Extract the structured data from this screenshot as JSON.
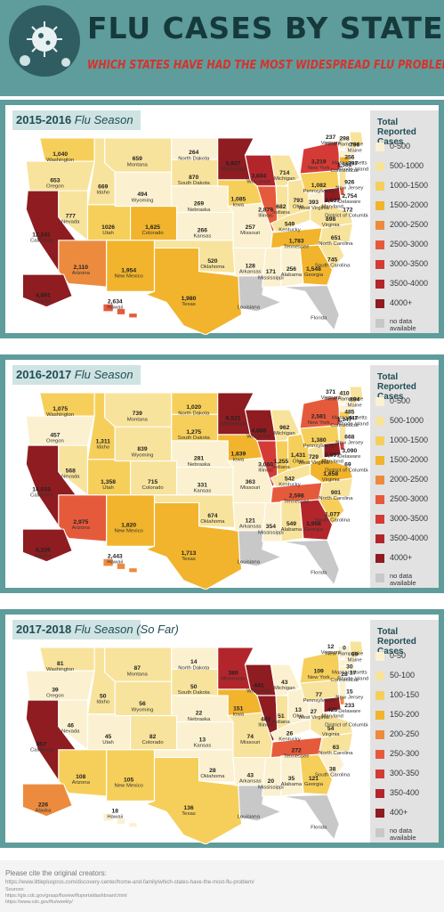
{
  "header": {
    "title": "FLU CASES BY STATE",
    "subtitle": "WHICH STATES HAVE HAD THE MOST WIDESPREAD FLU PROBLEM?"
  },
  "colors": {
    "teal_bg": "#5f9c9c",
    "bin1": "#fbf1d0",
    "bin2": "#f8e39c",
    "bin3": "#f6cf5b",
    "bin4": "#f1b42c",
    "bin5": "#ec8b3e",
    "bin6": "#e65a3c",
    "bin7": "#d53b36",
    "bin8": "#b2262b",
    "bin9": "#8e1c20",
    "nodata": "#c8c8c8"
  },
  "sections": [
    {
      "season": "2015-2016",
      "season_label": "Flu Season",
      "legend_title": "Total Reported Cases",
      "legend": [
        "0-500",
        "500-1000",
        "1000-1500",
        "1500-2000",
        "2000-2500",
        "2500-3000",
        "3000-3500",
        "3500-4000",
        "4000+",
        "no data available"
      ],
      "values": {
        "WA": "1,040",
        "OR": "653",
        "CA": "12,241",
        "NV": "777",
        "ID": "669",
        "MT": "659",
        "WY": "494",
        "UT": "1026",
        "AZ": "2,110",
        "CO": "1,625",
        "NM": "1,954",
        "ND": "264",
        "SD": "870",
        "NE": "269",
        "KS": "266",
        "OK": "520",
        "TX": "1,980",
        "MN": "5,927",
        "IA": "1,085",
        "MO": "257",
        "AR": "128",
        "LA": "",
        "WI": "3,604",
        "IL": "2,879",
        "MI": "714",
        "IN": "682",
        "OH": "793",
        "KY": "549",
        "TN": "1,783",
        "MS": "171",
        "AL": "256",
        "GA": "1,548",
        "FL": "",
        "SC": "745",
        "NC": "651",
        "VA": "898",
        "WV": "393",
        "PA": "1,082",
        "NY": "3,219",
        "VT": "237",
        "NH": "298",
        "ME": "796",
        "MA": "356",
        "RI": "397",
        "CT": "1,581",
        "NJ": "926",
        "DE": "2,754",
        "MD": "4,537",
        "DC": "172",
        "AK": "4,691",
        "HI": "2,634"
      }
    },
    {
      "season": "2016-2017",
      "season_label": "Flu Season",
      "legend_title": "Total Reported Cases",
      "legend": [
        "0-500",
        "500-1000",
        "1000-1500",
        "1500-2000",
        "2000-2500",
        "2500-3000",
        "3000-3500",
        "3500-4000",
        "4000+",
        "no data available"
      ],
      "values": {
        "WA": "1,075",
        "OR": "457",
        "CA": "14,033",
        "NV": "568",
        "ID": "1,311",
        "MT": "739",
        "WY": "839",
        "UT": "1,358",
        "AZ": "2,975",
        "CO": "715",
        "NM": "1,820",
        "ND": "1,020",
        "SD": "1,275",
        "NE": "281",
        "KS": "331",
        "OK": "674",
        "TX": "1,713",
        "MN": "6,521",
        "IA": "1,839",
        "MO": "363",
        "AR": "121",
        "LA": "",
        "WI": "4,888",
        "IL": "3,060",
        "MI": "962",
        "IN": "1,255",
        "OH": "1,431",
        "KY": "542",
        "TN": "2,598",
        "MS": "354",
        "AL": "549",
        "GA": "3,956",
        "FL": "",
        "SC": "1,077",
        "NC": "901",
        "VA": "1,658",
        "WV": "729",
        "PA": "1,380",
        "NY": "2,581",
        "VT": "371",
        "NH": "410",
        "ME": "894",
        "MA": "485",
        "RI": "447",
        "CT": "1,347",
        "NJ": "668",
        "DE": "3,090",
        "MD": "5,997",
        "DC": "69",
        "AK": "5,226",
        "HI": "2,443"
      }
    },
    {
      "season": "2017-2018",
      "season_label": "Flu Season",
      "season_note": "(So Far)",
      "legend_title": "Total Reported Cases",
      "legend": [
        "0-50",
        "50-100",
        "100-150",
        "150-200",
        "200-250",
        "250-300",
        "300-350",
        "350-400",
        "400+",
        "no data available"
      ],
      "values": {
        "WA": "81",
        "OR": "39",
        "CA": "857",
        "NV": "46",
        "ID": "50",
        "MT": "87",
        "WY": "56",
        "UT": "45",
        "AZ": "108",
        "CO": "82",
        "NM": "105",
        "ND": "14",
        "SD": "50",
        "NE": "22",
        "KS": "13",
        "OK": "28",
        "TX": "136",
        "MN": "380",
        "IA": "151",
        "MO": "74",
        "AR": "43",
        "LA": "",
        "WI": "441",
        "IL": "402",
        "MI": "43",
        "IN": "51",
        "OH": "13",
        "KY": "26",
        "TN": "272",
        "MS": "20",
        "AL": "35",
        "GA": "121",
        "FL": "",
        "SC": "38",
        "NC": "63",
        "VA": "54",
        "WV": "27",
        "PA": "77",
        "NY": "109",
        "VT": "12",
        "NH": "0",
        "ME": "69",
        "MA": "30",
        "RI": "17",
        "CT": "28",
        "NJ": "15",
        "DE": "233",
        "MD": "426",
        "DC": "",
        "AK": "226",
        "HI": "18"
      }
    }
  ],
  "state_names": {
    "WA": "Washington",
    "OR": "Oregon",
    "CA": "California",
    "NV": "Nevada",
    "ID": "Idaho",
    "MT": "Montana",
    "WY": "Wyoming",
    "UT": "Utah",
    "AZ": "Arizona",
    "CO": "Colorado",
    "NM": "New Mexico",
    "ND": "North Dakota",
    "SD": "South Dakota",
    "NE": "Nebraska",
    "KS": "Kansas",
    "OK": "Oklahoma",
    "TX": "Texas",
    "MN": "Minnesota",
    "IA": "Iowa",
    "MO": "Missouri",
    "AR": "Arkansas",
    "LA": "Louisiana",
    "WI": "Wisconsin",
    "IL": "Illinois",
    "MI": "Michigan",
    "IN": "Indiana",
    "OH": "Ohio",
    "KY": "Kentucky",
    "TN": "Tennessee",
    "MS": "Mississippi",
    "AL": "Alabama",
    "GA": "Georgia",
    "FL": "Florida",
    "SC": "South Carolina",
    "NC": "North Carolina",
    "VA": "Virginia",
    "WV": "West Virginia",
    "PA": "Pennsylvania",
    "NY": "New York",
    "VT": "Vermont",
    "NH": "New Hampshire",
    "ME": "Maine",
    "MA": "Massachusetts",
    "RI": "Rhode Island",
    "CT": "Connecticut",
    "NJ": "New Jersey",
    "DE": "Delaware",
    "MD": "Maryland",
    "DC": "District of Columbia",
    "AK": "Alaska",
    "HI": "Hawaii"
  },
  "footer": {
    "cite": "Please cite the original creators:",
    "url1": "https://www.littlepluspros.com/discovery-center/home-and-family/which-states-have-the-most-flu-problem/",
    "sources": "Sources:",
    "url2": "https://gis.cdc.gov/grasp/fluview/fluportaldashboard.html",
    "url3": "https://www.cdc.gov/flu/weekly/"
  }
}
